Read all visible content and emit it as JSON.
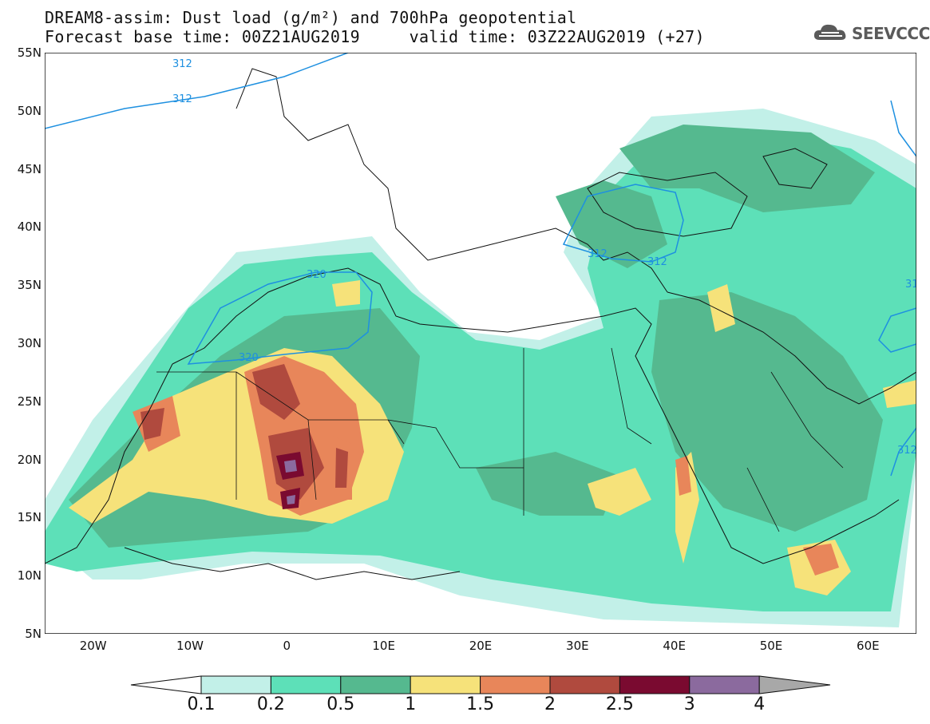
{
  "header": {
    "line1": "DREAM8-assim: Dust load (g/m²) and 700hPa geopotential",
    "line2": "Forecast base time: 00Z21AUG2019     valid time: 03Z22AUG2019 (+27)",
    "logo_text": "SEEVCCC"
  },
  "map": {
    "lat_ticks": [
      "55N",
      "50N",
      "45N",
      "40N",
      "35N",
      "30N",
      "25N",
      "20N",
      "15N",
      "10N",
      "5N"
    ],
    "lon_ticks": [
      "20W",
      "10W",
      "0",
      "10E",
      "20E",
      "30E",
      "40E",
      "50E",
      "60E"
    ],
    "contour_labels": [
      "312",
      "312",
      "312",
      "312",
      "320",
      "320",
      "312",
      "31"
    ],
    "lon_range": [
      -25,
      65
    ],
    "lat_range": [
      5,
      55
    ]
  },
  "legend": {
    "labels": [
      "0.1",
      "0.2",
      "0.5",
      "1",
      "1.5",
      "2",
      "2.5",
      "3",
      "4"
    ],
    "colors": [
      "#c2f0e8",
      "#5de0b8",
      "#55b98f",
      "#f6e27a",
      "#e8865a",
      "#b04a3e",
      "#7a0a30",
      "#8b6a9e",
      "#a8a8a8"
    ],
    "unit": "g/m²"
  }
}
